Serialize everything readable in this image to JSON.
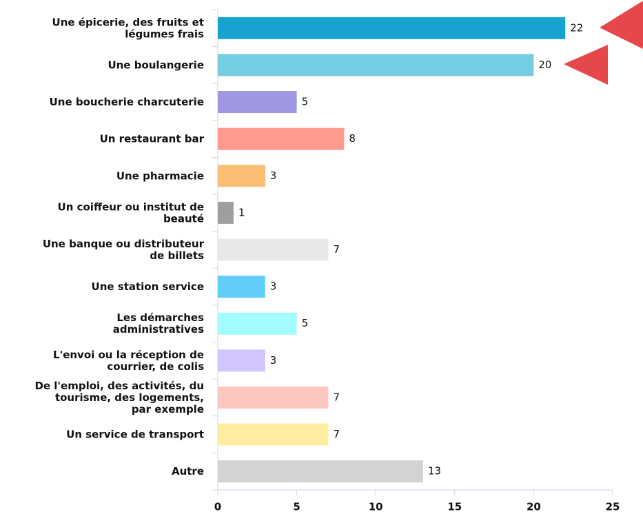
{
  "chart_data": {
    "type": "bar",
    "orientation": "horizontal",
    "categories": [
      "Une épicerie, des fruits et\nlégumes frais",
      "Une boulangerie",
      "Une boucherie charcuterie",
      "Un restaurant bar",
      "Une pharmacie",
      "Un coiffeur ou institut de\nbeauté",
      "Une banque ou distributeur\nde billets",
      "Une station service",
      "Les démarches\nadministratives",
      "L'envoi ou la réception de\ncourrier, de colis",
      "De l'emploi, des activités, du\ntourisme, des logements,\npar exemple",
      "Un service de transport",
      "Autre"
    ],
    "values": [
      22,
      20,
      5,
      8,
      3,
      1,
      7,
      3,
      5,
      3,
      7,
      7,
      13
    ],
    "colors": [
      "#17a2d0",
      "#74cde0",
      "#9f96e4",
      "#ff9a8f",
      "#fbbd74",
      "#9e9e9e",
      "#e8e8e8",
      "#62cdf8",
      "#a2fbfd",
      "#d3c5fd",
      "#fdc7c0",
      "#fdeea2",
      "#d3d3d3"
    ],
    "xlim": [
      0,
      25
    ],
    "xticks": [
      0,
      5,
      10,
      15,
      20,
      25
    ]
  }
}
